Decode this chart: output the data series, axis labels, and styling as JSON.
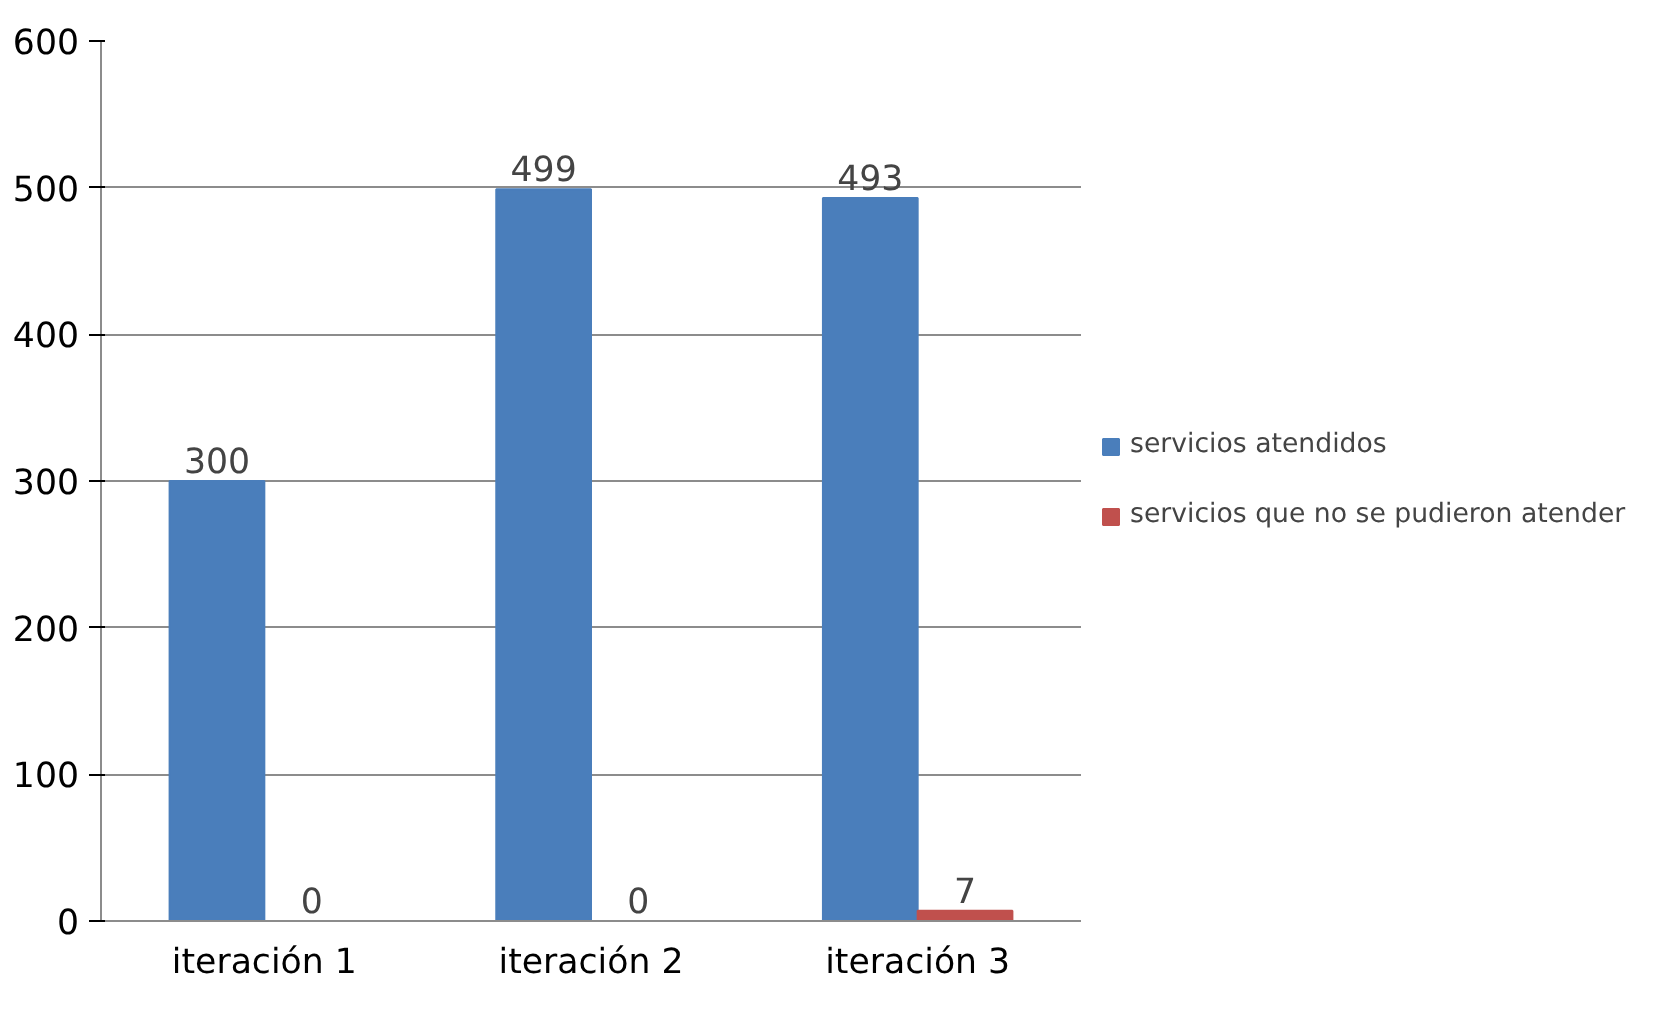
{
  "chart_data": {
    "type": "bar",
    "categories": [
      "iteración 1",
      "iteración 2",
      "iteración 3"
    ],
    "series": [
      {
        "name": "servicios atendidos",
        "color": "#4a7ebb",
        "values": [
          300,
          499,
          493
        ]
      },
      {
        "name": "servicios que no se pudieron atender",
        "color": "#c0504d",
        "values": [
          0,
          0,
          7
        ]
      }
    ],
    "ylim": [
      0,
      600
    ],
    "yticks": [
      0,
      100,
      200,
      300,
      400,
      500,
      600
    ],
    "grid": "y",
    "legend": "right",
    "data_labels": true
  }
}
